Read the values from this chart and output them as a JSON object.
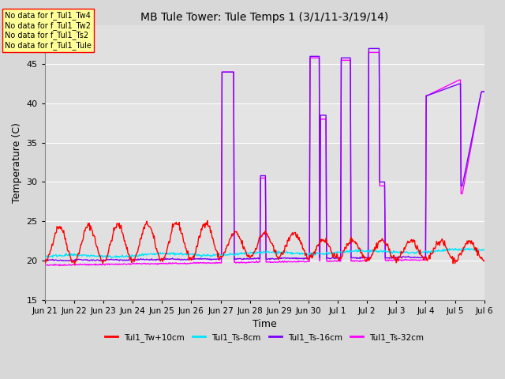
{
  "title": "MB Tule Tower: Tule Temps 1 (3/1/11-3/19/14)",
  "xlabel": "Time",
  "ylabel": "Temperature (C)",
  "ylim": [
    15,
    50
  ],
  "yticks": [
    15,
    20,
    25,
    30,
    35,
    40,
    45
  ],
  "fig_bg": "#d8d8d8",
  "plot_bg": "#e0e0e0",
  "grid_color": "#ffffff",
  "annotations": [
    "No data for f_Tul1_Tw4",
    "No data for f_Tul1_Tw2",
    "No data for f_Tul1_Ts2",
    "No data for f_Tul1_Tule"
  ],
  "legend_entries": [
    {
      "label": "Tul1_Tw+10cm",
      "color": "#ff0000"
    },
    {
      "label": "Tul1_Ts-8cm",
      "color": "#00e5ff"
    },
    {
      "label": "Tul1_Ts-16cm",
      "color": "#7b00ff"
    },
    {
      "label": "Tul1_Ts-32cm",
      "color": "#ff00ff"
    }
  ],
  "annotation_box_color": "#ffff99",
  "annotation_box_edge": "#ff0000",
  "xtick_labels": [
    "Jun 21",
    "Jun 22",
    "Jun 23",
    "Jun 24",
    "Jun 25",
    "Jun 26",
    "Jun 27",
    "Jun 28",
    "Jun 29",
    "Jun 30",
    "Jul 1",
    "Jul 2",
    "Jul 3",
    "Jul 4",
    "Jul 5",
    "Jul 6"
  ]
}
